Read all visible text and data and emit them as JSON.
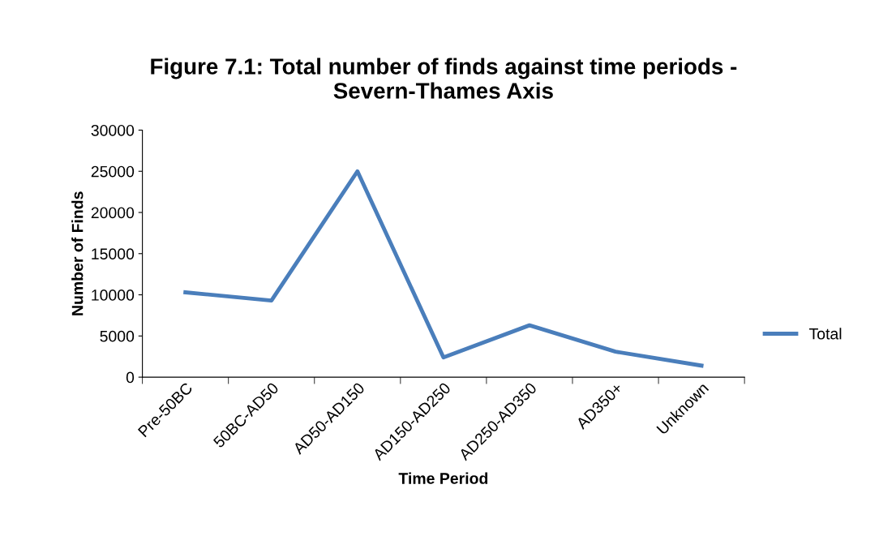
{
  "chart_data": {
    "type": "line",
    "title": "Figure 7.1: Total number of finds against time periods -\nSevern-Thames Axis",
    "xlabel": "Time Period",
    "ylabel": "Number of Finds",
    "categories": [
      "Pre-50BC",
      "50BC-AD50",
      "AD50-AD150",
      "AD150-AD250",
      "AD250-AD350",
      "AD350+",
      "Unknown"
    ],
    "series": [
      {
        "name": "Total",
        "color": "#4a7ebb",
        "values": [
          10300,
          9300,
          25000,
          2400,
          6300,
          3100,
          1400
        ]
      }
    ],
    "ylim": [
      0,
      30000
    ],
    "yticks": [
      0,
      5000,
      10000,
      15000,
      20000,
      25000,
      30000
    ],
    "grid": false,
    "legend": "right",
    "marker": "none",
    "line_style": "solid"
  }
}
